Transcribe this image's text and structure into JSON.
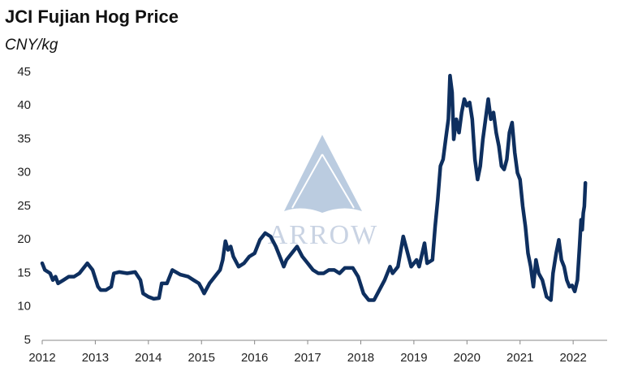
{
  "chart_data": {
    "type": "line",
    "title": "JCI Fujian Hog Price",
    "subtitle": "CNY/kg",
    "watermark": "ARROW",
    "color": "#0e2f5f",
    "x": [
      2012.0,
      2012.05,
      2012.15,
      2012.2,
      2012.25,
      2012.3,
      2012.4,
      2012.5,
      2012.6,
      2012.7,
      2012.85,
      2012.95,
      2013.05,
      2013.1,
      2013.2,
      2013.3,
      2013.35,
      2013.45,
      2013.6,
      2013.75,
      2013.85,
      2013.9,
      2014.0,
      2014.1,
      2014.2,
      2014.25,
      2014.35,
      2014.45,
      2014.6,
      2014.75,
      2014.85,
      2014.95,
      2015.0,
      2015.05,
      2015.15,
      2015.25,
      2015.35,
      2015.4,
      2015.45,
      2015.5,
      2015.55,
      2015.6,
      2015.7,
      2015.8,
      2015.9,
      2016.0,
      2016.1,
      2016.2,
      2016.3,
      2016.4,
      2016.5,
      2016.55,
      2016.6,
      2016.7,
      2016.8,
      2016.9,
      2017.0,
      2017.1,
      2017.2,
      2017.3,
      2017.4,
      2017.5,
      2017.6,
      2017.7,
      2017.85,
      2017.95,
      2018.05,
      2018.15,
      2018.25,
      2018.35,
      2018.45,
      2018.55,
      2018.6,
      2018.7,
      2018.8,
      2018.85,
      2018.95,
      2019.05,
      2019.1,
      2019.2,
      2019.25,
      2019.35,
      2019.4,
      2019.45,
      2019.5,
      2019.55,
      2019.6,
      2019.65,
      2019.68,
      2019.72,
      2019.75,
      2019.8,
      2019.85,
      2019.9,
      2019.95,
      2020.0,
      2020.05,
      2020.1,
      2020.15,
      2020.2,
      2020.25,
      2020.3,
      2020.35,
      2020.4,
      2020.45,
      2020.5,
      2020.55,
      2020.6,
      2020.65,
      2020.7,
      2020.75,
      2020.8,
      2020.85,
      2020.9,
      2020.95,
      2021.0,
      2021.05,
      2021.1,
      2021.15,
      2021.2,
      2021.25,
      2021.3,
      2021.35,
      2021.42,
      2021.5,
      2021.58,
      2021.62,
      2021.68,
      2021.73,
      2021.78,
      2021.83,
      2021.88,
      2021.93,
      2021.98,
      2022.03,
      2022.08,
      2022.12,
      2022.15,
      2022.17,
      2022.19,
      2022.21,
      2022.23
    ],
    "values": [
      16.5,
      15.5,
      15,
      14,
      14.5,
      13.5,
      14,
      14.5,
      14.5,
      15,
      16.5,
      15.5,
      13,
      12.5,
      12.5,
      13,
      15,
      15.2,
      15,
      15.2,
      14,
      12,
      11.5,
      11.2,
      11.3,
      13.5,
      13.5,
      15.5,
      14.8,
      14.5,
      14,
      13.5,
      12.8,
      12,
      13.5,
      14.5,
      15.5,
      17,
      19.8,
      18.5,
      19,
      17.5,
      16,
      16.5,
      17.5,
      18,
      20,
      21,
      20.5,
      19,
      17,
      16,
      17,
      18,
      19,
      17.5,
      16.5,
      15.5,
      15,
      15,
      15.5,
      15.5,
      15,
      15.8,
      15.8,
      14.5,
      12,
      11,
      11,
      12.5,
      14,
      16,
      15,
      16,
      20.5,
      19,
      16,
      17,
      16,
      19.5,
      16.5,
      17,
      22,
      26,
      31,
      32,
      35,
      38,
      44.5,
      42,
      35,
      38,
      36,
      39,
      41,
      40,
      40.5,
      38,
      32,
      29,
      31,
      35,
      38,
      41,
      38,
      39,
      36,
      34,
      31,
      30.5,
      32,
      36,
      37.5,
      33,
      30,
      29,
      25,
      22,
      18,
      16,
      13,
      17,
      15,
      14,
      11.5,
      11,
      15,
      18,
      20,
      17,
      16,
      14,
      13,
      13.2,
      12.3,
      14,
      19,
      23,
      21.5,
      24,
      25,
      28.5
    ],
    "xlim": [
      2012,
      2022.64
    ],
    "xticks": [
      2012,
      2013,
      2014,
      2015,
      2016,
      2017,
      2018,
      2019,
      2020,
      2021,
      2022
    ],
    "ylim": [
      5,
      45
    ],
    "yticks": [
      5,
      10,
      15,
      20,
      25,
      30,
      35,
      40,
      45
    ]
  }
}
